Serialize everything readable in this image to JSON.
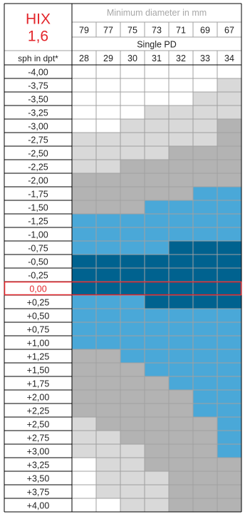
{
  "chart_data": {
    "type": "heatmap",
    "title": "HIX\n1,6",
    "diameter_header": "Minimum diameter in mm",
    "diameters": [
      "79",
      "77",
      "75",
      "73",
      "71",
      "69",
      "67"
    ],
    "pd_header": "Single PD",
    "row_header": "sph in dpt*",
    "pd_values": [
      "28",
      "29",
      "30",
      "31",
      "32",
      "33",
      "34"
    ],
    "highlight_row": "0,00",
    "colors": {
      "0": "#ffffff",
      "1": "#d9d9d9",
      "2": "#b3b3b3",
      "3": "#4aa8d8",
      "4": "#00628f",
      "title": "#e3262b",
      "header_gray": "#a8a8a8",
      "grid_line": "#a0a0a0",
      "border": "#000000"
    },
    "rows": [
      {
        "sph": "-4,00",
        "cells": [
          0,
          0,
          0,
          0,
          0,
          0,
          0
        ]
      },
      {
        "sph": "-3,75",
        "cells": [
          0,
          0,
          0,
          0,
          0,
          0,
          1
        ]
      },
      {
        "sph": "-3,50",
        "cells": [
          0,
          0,
          0,
          0,
          0,
          1,
          1
        ]
      },
      {
        "sph": "-3,25",
        "cells": [
          0,
          0,
          0,
          1,
          1,
          1,
          1
        ]
      },
      {
        "sph": "-3,00",
        "cells": [
          0,
          0,
          1,
          1,
          1,
          1,
          2
        ]
      },
      {
        "sph": "-2,75",
        "cells": [
          1,
          1,
          1,
          1,
          1,
          1,
          2
        ]
      },
      {
        "sph": "-2,50",
        "cells": [
          1,
          1,
          1,
          1,
          2,
          2,
          2
        ]
      },
      {
        "sph": "-2,25",
        "cells": [
          1,
          1,
          2,
          2,
          2,
          2,
          2
        ]
      },
      {
        "sph": "-2,00",
        "cells": [
          2,
          2,
          2,
          2,
          2,
          2,
          2
        ]
      },
      {
        "sph": "-1,75",
        "cells": [
          2,
          2,
          2,
          2,
          2,
          3,
          3
        ]
      },
      {
        "sph": "-1,50",
        "cells": [
          2,
          2,
          2,
          3,
          3,
          3,
          3
        ]
      },
      {
        "sph": "-1,25",
        "cells": [
          3,
          3,
          3,
          3,
          3,
          3,
          3
        ]
      },
      {
        "sph": "-1,00",
        "cells": [
          3,
          3,
          3,
          3,
          3,
          3,
          3
        ]
      },
      {
        "sph": "-0,75",
        "cells": [
          3,
          3,
          3,
          3,
          4,
          4,
          4
        ]
      },
      {
        "sph": "-0,50",
        "cells": [
          4,
          4,
          4,
          4,
          4,
          4,
          4
        ]
      },
      {
        "sph": "-0,25",
        "cells": [
          4,
          4,
          4,
          4,
          4,
          4,
          4
        ]
      },
      {
        "sph": "0,00",
        "cells": [
          4,
          4,
          4,
          4,
          4,
          4,
          4
        ]
      },
      {
        "sph": "+0,25",
        "cells": [
          3,
          3,
          3,
          4,
          4,
          4,
          4
        ]
      },
      {
        "sph": "+0,50",
        "cells": [
          3,
          3,
          3,
          3,
          3,
          3,
          3
        ]
      },
      {
        "sph": "+0,75",
        "cells": [
          3,
          3,
          3,
          3,
          3,
          3,
          3
        ]
      },
      {
        "sph": "+1,00",
        "cells": [
          3,
          3,
          3,
          3,
          3,
          3,
          3
        ]
      },
      {
        "sph": "+1,25",
        "cells": [
          2,
          2,
          3,
          3,
          3,
          3,
          3
        ]
      },
      {
        "sph": "+1,50",
        "cells": [
          2,
          2,
          2,
          3,
          3,
          3,
          3
        ]
      },
      {
        "sph": "+1,75",
        "cells": [
          2,
          2,
          2,
          2,
          3,
          3,
          3
        ]
      },
      {
        "sph": "+2,00",
        "cells": [
          2,
          2,
          2,
          2,
          2,
          3,
          3
        ]
      },
      {
        "sph": "+2,25",
        "cells": [
          2,
          2,
          2,
          2,
          2,
          3,
          3
        ]
      },
      {
        "sph": "+2,50",
        "cells": [
          1,
          2,
          2,
          2,
          2,
          2,
          3
        ]
      },
      {
        "sph": "+2,75",
        "cells": [
          1,
          1,
          2,
          2,
          2,
          2,
          3
        ]
      },
      {
        "sph": "+3,00",
        "cells": [
          1,
          1,
          1,
          2,
          2,
          2,
          3
        ]
      },
      {
        "sph": "+3,25",
        "cells": [
          0,
          1,
          1,
          2,
          2,
          2,
          2
        ]
      },
      {
        "sph": "+3,50",
        "cells": [
          0,
          1,
          1,
          1,
          2,
          2,
          2
        ]
      },
      {
        "sph": "+3,75",
        "cells": [
          0,
          1,
          1,
          1,
          2,
          2,
          2
        ]
      },
      {
        "sph": "+4,00",
        "cells": [
          0,
          0,
          1,
          1,
          2,
          2,
          2
        ]
      }
    ]
  }
}
